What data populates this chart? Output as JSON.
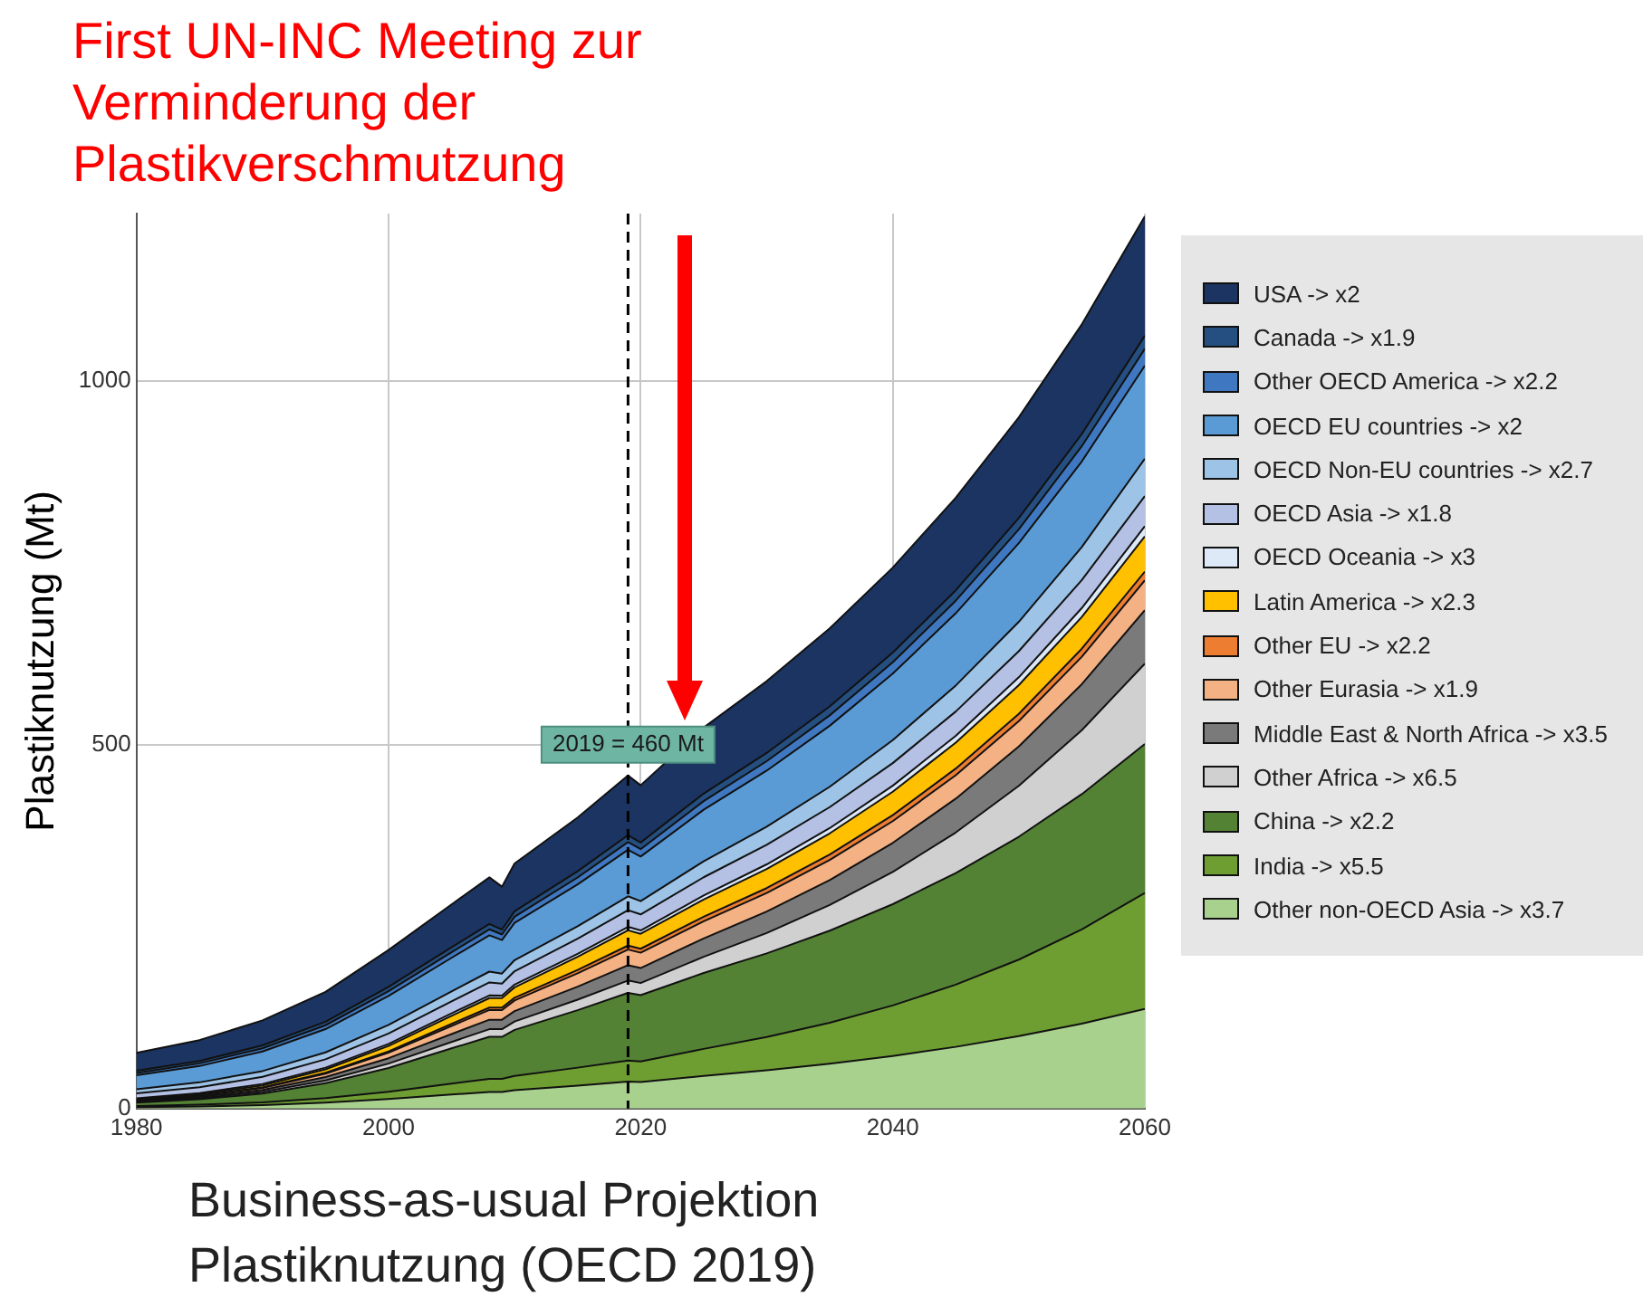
{
  "chart_data": {
    "type": "area",
    "stacked": true,
    "title": "First UN-INC Meeting zur Verminderung der Plastikverschmutzung",
    "xlabel": "Business-as-usual Projektion Plastiknutzung (OECD 2019)",
    "ylabel": "Plastiknutzung (Mt)",
    "x": [
      1980,
      1985,
      1990,
      1995,
      2000,
      2005,
      2008,
      2009,
      2010,
      2015,
      2019,
      2020,
      2025,
      2030,
      2035,
      2040,
      2045,
      2050,
      2055,
      2060
    ],
    "xlim": [
      1980,
      2060
    ],
    "xticks": [
      1980,
      2000,
      2020,
      2040,
      2060
    ],
    "ylim": [
      0,
      1230
    ],
    "yticks": [
      0,
      500,
      1000
    ],
    "grid": true,
    "legend": "right",
    "series": [
      {
        "name": "Other non-OECD Asia -> x3.7",
        "color": "#a9d18e",
        "values": [
          1.9,
          3,
          4.8,
          8.1,
          13,
          19.2,
          22.9,
          22.9,
          25.2,
          31.5,
          37,
          36.3,
          44.8,
          52.5,
          61.6,
          72.3,
          84.8,
          99.5,
          116.7,
          136.9
        ]
      },
      {
        "name": "India -> x5.5",
        "color": "#6e9e32",
        "values": [
          1.5,
          2.3,
          3.8,
          6.4,
          10.2,
          15.1,
          18,
          18,
          19.7,
          24.7,
          29,
          28.4,
          37.2,
          45.8,
          56.4,
          69.4,
          85.5,
          105.2,
          129.6,
          159.5
        ]
      },
      {
        "name": "China -> x2.2",
        "color": "#548235",
        "values": [
          4.7,
          7.4,
          12.1,
          20.5,
          32.6,
          48.4,
          57.7,
          57.7,
          63.2,
          79,
          93,
          91.1,
          104.3,
          114.9,
          126.5,
          139.2,
          153.4,
          168.8,
          185.8,
          204.6
        ]
      },
      {
        "name": "Other Africa -> x6.5",
        "color": "#d0d0d0",
        "values": [
          0.9,
          1.4,
          2.2,
          3.7,
          6,
          8.8,
          10.5,
          10.5,
          11.6,
          14.5,
          17,
          16.7,
          22.3,
          28.1,
          35.3,
          44.3,
          55.7,
          70,
          88,
          110.5
        ]
      },
      {
        "name": "Middle East & North Africa -> x3.5",
        "color": "#7a7a7a",
        "values": [
          1.1,
          1.7,
          2.7,
          4.6,
          7.4,
          10.9,
          13,
          13,
          14.3,
          17.9,
          21,
          20.6,
          25.2,
          29.4,
          34.2,
          39.9,
          46.5,
          54.1,
          63.1,
          73.5
        ]
      },
      {
        "name": "Other Eurasia -> x1.9",
        "color": "#f4b183",
        "values": [
          1.1,
          1.7,
          2.8,
          4.7,
          7.5,
          11.2,
          13.3,
          13.3,
          14.6,
          18.3,
          21.5,
          21.1,
          23.6,
          25.5,
          27.6,
          29.9,
          32.3,
          34.9,
          37.8,
          40.9
        ]
      },
      {
        "name": "Other EU -> x2.2",
        "color": "#ed7d31",
        "values": [
          0.3,
          0.4,
          0.7,
          1.2,
          1.9,
          2.9,
          3.4,
          3.4,
          3.7,
          4.7,
          5.5,
          5.4,
          6.2,
          6.8,
          7.5,
          8.2,
          9.1,
          10,
          11,
          12.1
        ]
      },
      {
        "name": "Latin America -> x2.3",
        "color": "#ffc000",
        "values": [
          1.1,
          1.7,
          2.7,
          4.6,
          7.4,
          10.9,
          13,
          13,
          14.3,
          17.9,
          21,
          20.6,
          23.7,
          26.3,
          29.1,
          32.2,
          35.6,
          39.4,
          43.6,
          48.3
        ]
      },
      {
        "name": "OECD Oceania -> x3",
        "color": "#dde9f7",
        "values": [
          1.4,
          1.6,
          2,
          2.4,
          2.9,
          3.4,
          3.7,
          3.4,
          3.8,
          4.2,
          4.7,
          4.5,
          5.5,
          6.3,
          7.2,
          8.3,
          9.4,
          10.8,
          12.3,
          14.1
        ]
      },
      {
        "name": "OECD Asia -> x1.8",
        "color": "#b4c0e4",
        "values": [
          6.9,
          8.1,
          9.7,
          11.5,
          14.3,
          16.6,
          17.9,
          16.6,
          18.4,
          20.7,
          23,
          22.1,
          25.1,
          26.9,
          28.9,
          31.1,
          33.4,
          35.9,
          38.5,
          41.4
        ]
      },
      {
        "name": "OECD Non-EU countries -> x2.7",
        "color": "#9dc3e6",
        "values": [
          5.7,
          6.7,
          8,
          9.5,
          11.8,
          13.7,
          14.8,
          13.7,
          15.2,
          17.1,
          19,
          18.2,
          22,
          24.8,
          28,
          31.6,
          35.7,
          40.3,
          45.4,
          51.3
        ]
      },
      {
        "name": "OECD EU countries -> x2",
        "color": "#5b9bd5",
        "values": [
          19.2,
          22.4,
          26.9,
          32,
          39.7,
          46.1,
          49.9,
          46.1,
          51.2,
          57.6,
          64,
          61.4,
          70.8,
          77.1,
          83.8,
          91.3,
          99.3,
          108.1,
          117.6,
          128
        ]
      },
      {
        "name": "Other OECD America -> x2.2",
        "color": "#3f78c0",
        "values": [
          3.2,
          3.7,
          4.4,
          5.3,
          6.5,
          7.6,
          8.2,
          7.6,
          8.4,
          9.5,
          10.5,
          10.1,
          11.8,
          13,
          14.3,
          15.7,
          17.3,
          19.1,
          21,
          23.1
        ]
      },
      {
        "name": "Canada -> x1.9",
        "color": "#244f80",
        "values": [
          2.9,
          3.3,
          4,
          4.8,
          5.9,
          6.8,
          7.4,
          6.8,
          7.6,
          8.6,
          9.5,
          9.1,
          10.4,
          11.3,
          12.2,
          13.2,
          14.3,
          15.4,
          16.7,
          18.1
        ]
      },
      {
        "name": "USA -> x2",
        "color": "#1b3461",
        "values": [
          24.6,
          28.7,
          34.4,
          41,
          50.8,
          59,
          64,
          59,
          65.6,
          73.8,
          82,
          78.7,
          90.7,
          98.7,
          107.4,
          116.9,
          127.2,
          138.5,
          150.7,
          164
        ]
      }
    ],
    "ref_lines": [
      {
        "axis": "x",
        "value": 2019,
        "color": "#000000",
        "line_style": "dashed"
      }
    ],
    "annotations": [
      {
        "text": "2019 = 460 Mt",
        "x": 2019,
        "y": 500
      }
    ]
  }
}
